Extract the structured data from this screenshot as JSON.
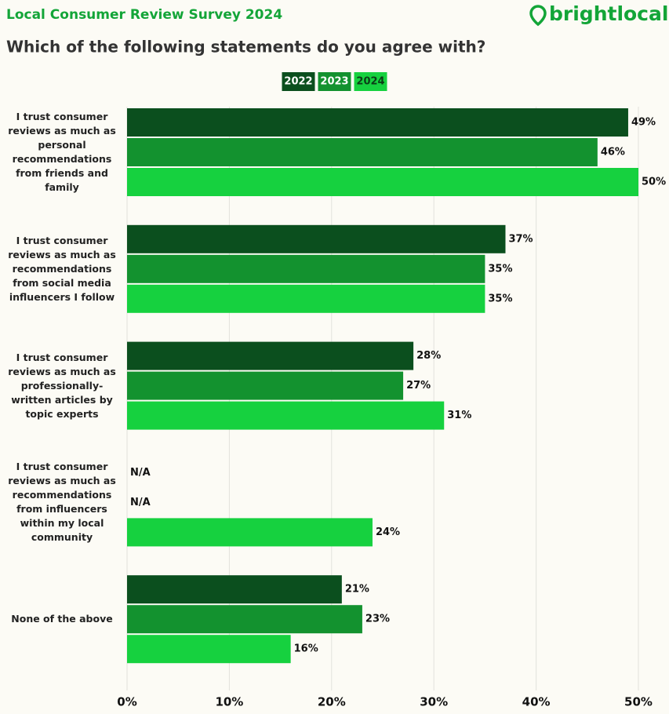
{
  "chart_data": {
    "type": "bar",
    "orientation": "horizontal",
    "title": "Local Consumer Review Survey 2024",
    "brand": "brightlocal",
    "subtitle": "Which of the following statements do you agree with?",
    "categories": [
      "I trust consumer reviews as much as personal recommendations from friends and family",
      "I trust consumer reviews as much as recommendations from social media influencers I follow",
      "I trust consumer reviews as much as professionally-written articles by topic experts",
      "I trust consumer reviews as much as recommendations from influencers within my local community",
      "None of the above"
    ],
    "series": [
      {
        "name": "2022",
        "color": "#0b4f1e",
        "values": [
          49,
          37,
          28,
          null,
          21
        ],
        "value_labels": [
          "49%",
          "37%",
          "28%",
          "N/A",
          "21%"
        ]
      },
      {
        "name": "2023",
        "color": "#13922f",
        "values": [
          46,
          35,
          27,
          null,
          23
        ],
        "value_labels": [
          "46%",
          "35%",
          "27%",
          "N/A",
          "23%"
        ]
      },
      {
        "name": "2024",
        "color": "#16d13f",
        "values": [
          50,
          35,
          31,
          24,
          16
        ],
        "value_labels": [
          "50%",
          "35%",
          "31%",
          "24%",
          "16%"
        ]
      }
    ],
    "xlim": [
      0,
      50
    ],
    "xticks": [
      {
        "value": 0,
        "label": "0%"
      },
      {
        "value": 10,
        "label": "10%"
      },
      {
        "value": 20,
        "label": "20%"
      },
      {
        "value": 30,
        "label": "30%"
      },
      {
        "value": 40,
        "label": "40%"
      },
      {
        "value": 50,
        "label": "50%"
      }
    ],
    "grid": true
  }
}
